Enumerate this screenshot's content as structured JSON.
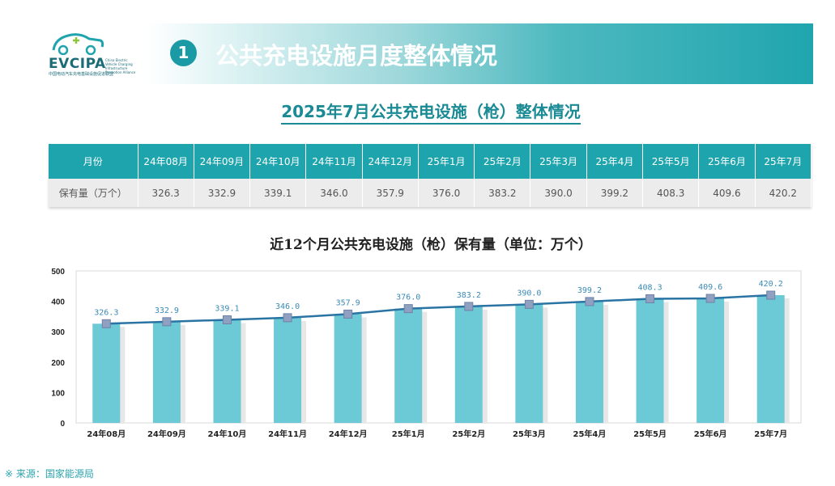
{
  "logo": {
    "name": "EVCIPA",
    "side_text": "China Electric Vehicle Charging Infrastructure Promotion Alliance",
    "subtitle": "中国电动汽车充电基础设施促进联盟"
  },
  "header": {
    "number": "1",
    "title": "公共充电设施月度整体情况"
  },
  "section_title": "2025年7月公共充电设施（枪）整体情况",
  "table": {
    "row_labels": [
      "月份",
      "保有量（万个）"
    ],
    "months": [
      "24年08月",
      "24年09月",
      "24年10月",
      "24年11月",
      "24年12月",
      "25年1月",
      "25年2月",
      "25年3月",
      "25年4月",
      "25年5月",
      "25年6月",
      "25年7月"
    ],
    "values": [
      "326.3",
      "332.9",
      "339.1",
      "346.0",
      "357.9",
      "376.0",
      "383.2",
      "390.0",
      "399.2",
      "408.3",
      "409.6",
      "420.2"
    ]
  },
  "chart_data": {
    "type": "bar",
    "title": "近12个月公共充电设施（枪）保有量（单位：万个）",
    "categories": [
      "24年08月",
      "24年09月",
      "24年10月",
      "24年11月",
      "24年12月",
      "25年1月",
      "25年2月",
      "25年3月",
      "25年4月",
      "25年5月",
      "25年6月",
      "25年7月"
    ],
    "series": [
      {
        "values": [
          326.3,
          332.9,
          339.1,
          346.0,
          357.9,
          376.0,
          383.2,
          390.0,
          399.2,
          408.3,
          409.6,
          420.2
        ]
      }
    ],
    "overlay": "line",
    "data_labels": [
      "326.3",
      "332.9",
      "339.1",
      "346.0",
      "357.9",
      "376.0",
      "383.2",
      "390.0",
      "399.2",
      "408.3",
      "409.6",
      "420.2"
    ],
    "ylim": [
      0,
      500
    ],
    "yticks": [
      0,
      100,
      200,
      300,
      400,
      500
    ],
    "grid": false,
    "colors": {
      "bar": "#6cc9d6",
      "line": "#2a74a4",
      "marker": "#8fa0c0"
    }
  },
  "source": "※ 来源：国家能源局"
}
